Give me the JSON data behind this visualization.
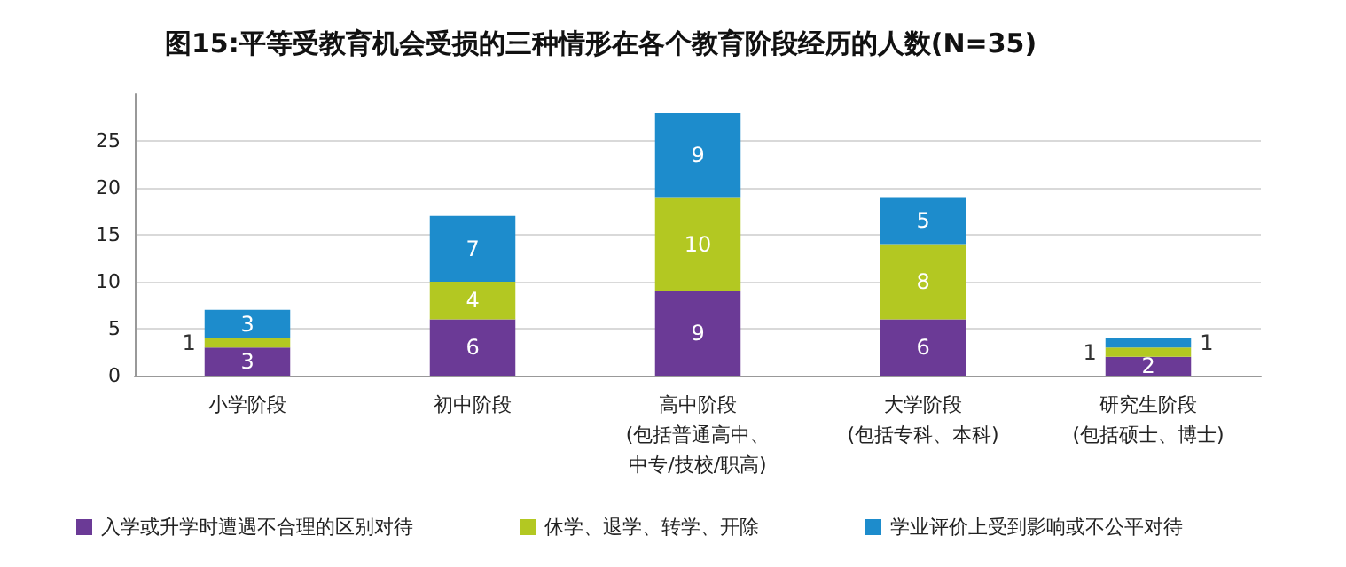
{
  "chart_data": {
    "type": "bar",
    "stacked": true,
    "title": "图15:平等受教育机会受损的三种情形在各个教育阶段经历的人数(N=35)",
    "categories": [
      "小学阶段",
      "初中阶段",
      "高中阶段\n(包括普通高中、中专/技校/职高)",
      "大学阶段\n(包括专科、本科)",
      "研究生阶段\n(包括硕士、博士)"
    ],
    "series": [
      {
        "name": "入学或升学时遭遇不合理的区别对待",
        "color": "#6b3a96",
        "values": [
          3,
          6,
          9,
          6,
          2
        ]
      },
      {
        "name": "休学、退学、转学、开除",
        "color": "#b3c822",
        "values": [
          1,
          4,
          10,
          8,
          1
        ]
      },
      {
        "name": "学业评价上受到影响或不公平对待",
        "color": "#1d8ccc",
        "values": [
          3,
          7,
          9,
          5,
          1
        ]
      }
    ],
    "data_labels": true,
    "ylim": [
      0,
      30
    ],
    "yticks": [
      0,
      5,
      10,
      15,
      20,
      25
    ],
    "grid": "y",
    "legend": "bottom left"
  }
}
